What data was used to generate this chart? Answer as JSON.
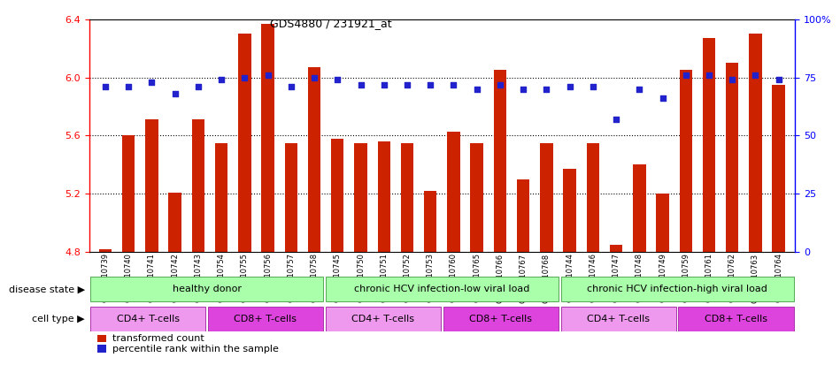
{
  "title": "GDS4880 / 231921_at",
  "samples": [
    "GSM1210739",
    "GSM1210740",
    "GSM1210741",
    "GSM1210742",
    "GSM1210743",
    "GSM1210754",
    "GSM1210755",
    "GSM1210756",
    "GSM1210757",
    "GSM1210758",
    "GSM1210745",
    "GSM1210750",
    "GSM1210751",
    "GSM1210752",
    "GSM1210753",
    "GSM1210760",
    "GSM1210765",
    "GSM1210766",
    "GSM1210767",
    "GSM1210768",
    "GSM1210744",
    "GSM1210746",
    "GSM1210747",
    "GSM1210748",
    "GSM1210749",
    "GSM1210759",
    "GSM1210761",
    "GSM1210762",
    "GSM1210763",
    "GSM1210764"
  ],
  "bar_values": [
    4.82,
    5.6,
    5.71,
    5.21,
    5.71,
    5.55,
    6.3,
    6.37,
    5.55,
    6.07,
    5.58,
    5.55,
    5.56,
    5.55,
    5.22,
    5.63,
    5.55,
    6.05,
    5.3,
    5.55,
    5.37,
    5.55,
    4.85,
    5.4,
    5.2,
    6.05,
    6.27,
    6.1,
    6.3,
    5.95
  ],
  "percentile_values": [
    71,
    71,
    73,
    68,
    71,
    74,
    75,
    76,
    71,
    75,
    74,
    72,
    72,
    72,
    72,
    72,
    70,
    72,
    70,
    70,
    71,
    71,
    57,
    70,
    66,
    76,
    76,
    74,
    76,
    74
  ],
  "ylim_left": [
    4.8,
    6.4
  ],
  "ylim_right": [
    0,
    100
  ],
  "yticks_left": [
    4.8,
    5.2,
    5.6,
    6.0,
    6.4
  ],
  "yticks_right": [
    0,
    25,
    50,
    75,
    100
  ],
  "ytick_labels_right": [
    "0",
    "25",
    "50",
    "75",
    "100%"
  ],
  "bar_color": "#cc2200",
  "dot_color": "#2222cc",
  "disease_label_color": "#aaffaa",
  "cd4_color": "#ee99ee",
  "cd8_color": "#dd44dd",
  "disease_groups": [
    {
      "label": "healthy donor",
      "n": 10
    },
    {
      "label": "chronic HCV infection-low viral load",
      "n": 10
    },
    {
      "label": "chronic HCV infection-high viral load",
      "n": 10
    }
  ],
  "cell_type_groups": [
    {
      "label": "CD4+ T-cells",
      "n": 5,
      "type": "CD4"
    },
    {
      "label": "CD8+ T-cells",
      "n": 5,
      "type": "CD8"
    },
    {
      "label": "CD4+ T-cells",
      "n": 5,
      "type": "CD4"
    },
    {
      "label": "CD8+ T-cells",
      "n": 5,
      "type": "CD8"
    },
    {
      "label": "CD4+ T-cells",
      "n": 5,
      "type": "CD4"
    },
    {
      "label": "CD8+ T-cells",
      "n": 5,
      "type": "CD8"
    }
  ],
  "disease_state_label": "disease state",
  "cell_type_label": "cell type",
  "legend_bar_label": "transformed count",
  "legend_dot_label": "percentile rank within the sample"
}
